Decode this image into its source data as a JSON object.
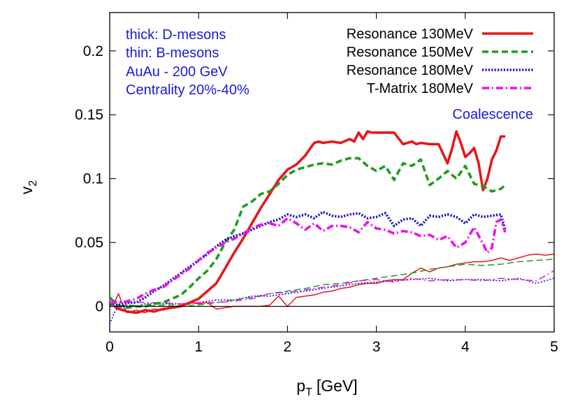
{
  "chart_data": {
    "type": "line",
    "xlabel": "p",
    "xlabel_sub": "T",
    "xlabel_unit": "[GeV]",
    "ylabel": "v",
    "ylabel_sub": "2",
    "xlim": [
      0,
      5
    ],
    "ylim": [
      -0.02,
      0.23
    ],
    "xticks": [
      0,
      1,
      2,
      3,
      4,
      5
    ],
    "yticks": [
      0,
      0.05,
      0.1,
      0.15,
      0.2
    ],
    "ytick_labels": [
      "0",
      "0.05",
      "0.1",
      "0.15",
      "0.2"
    ],
    "zero_line": true,
    "grid": false,
    "annotations": {
      "notes": [
        "thick: D-mesons",
        "thin: B-mesons",
        "AuAu - 200 GeV",
        "Centrality 20%-40%"
      ],
      "coalescence": "Coalescence"
    },
    "legend_position": "top-right",
    "series": [
      {
        "name": "Resonance 130MeV",
        "color": "#e8161b",
        "dash": "solid",
        "thick_x": [
          0.05,
          0.1,
          0.15,
          0.2,
          0.3,
          0.4,
          0.5,
          0.6,
          0.7,
          0.8,
          0.9,
          1.0,
          1.1,
          1.2,
          1.3,
          1.4,
          1.5,
          1.6,
          1.7,
          1.8,
          1.9,
          2.0,
          2.1,
          2.2,
          2.3,
          2.35,
          2.4,
          2.5,
          2.6,
          2.7,
          2.75,
          2.8,
          2.85,
          2.9,
          2.95,
          3.0,
          3.1,
          3.2,
          3.3,
          3.4,
          3.45,
          3.5,
          3.6,
          3.7,
          3.8,
          3.85,
          3.9,
          3.95,
          4.0,
          4.05,
          4.1,
          4.15,
          4.2,
          4.25,
          4.3,
          4.35,
          4.4,
          4.45
        ],
        "thick_y": [
          0.0,
          -0.002,
          -0.003,
          -0.004,
          -0.005,
          -0.003,
          -0.004,
          -0.002,
          -0.001,
          0.0,
          0.003,
          0.006,
          0.012,
          0.018,
          0.03,
          0.042,
          0.053,
          0.065,
          0.077,
          0.088,
          0.099,
          0.107,
          0.111,
          0.118,
          0.128,
          0.129,
          0.128,
          0.129,
          0.128,
          0.131,
          0.129,
          0.136,
          0.131,
          0.137,
          0.136,
          0.136,
          0.136,
          0.136,
          0.127,
          0.129,
          0.127,
          0.128,
          0.127,
          0.127,
          0.112,
          0.123,
          0.137,
          0.128,
          0.117,
          0.12,
          0.124,
          0.112,
          0.091,
          0.1,
          0.115,
          0.122,
          0.133,
          0.133
        ],
        "thin_x": [
          0.0,
          0.05,
          0.1,
          0.15,
          0.2,
          0.3,
          0.4,
          0.5,
          0.6,
          0.7,
          0.8,
          0.9,
          1.0,
          1.1,
          1.2,
          1.3,
          1.4,
          1.5,
          1.6,
          1.7,
          1.8,
          1.9,
          1.95,
          2.0,
          2.1,
          2.2,
          2.3,
          2.4,
          2.5,
          2.6,
          2.7,
          2.8,
          2.9,
          3.0,
          3.1,
          3.2,
          3.3,
          3.4,
          3.5,
          3.6,
          3.7,
          3.8,
          3.9,
          4.0,
          4.1,
          4.2,
          4.3,
          4.4,
          4.5,
          4.6,
          4.7,
          4.8,
          4.9,
          5.0
        ],
        "thin_y": [
          0.0,
          0.003,
          0.01,
          0.0,
          -0.005,
          -0.003,
          -0.005,
          -0.002,
          -0.003,
          -0.001,
          0.001,
          0.003,
          0.002,
          0.003,
          -0.002,
          -0.001,
          0.0,
          0.0,
          0.0,
          0.0,
          0.001,
          0.008,
          0.004,
          0.0,
          0.007,
          0.008,
          0.009,
          0.011,
          0.012,
          0.014,
          0.015,
          0.017,
          0.018,
          0.018,
          0.02,
          0.021,
          0.021,
          0.026,
          0.03,
          0.027,
          0.03,
          0.031,
          0.033,
          0.034,
          0.035,
          0.035,
          0.036,
          0.038,
          0.036,
          0.038,
          0.04,
          0.041,
          0.04,
          0.041
        ]
      },
      {
        "name": "Resonance 150MeV",
        "color": "#1f9c1f",
        "dash": "dashed",
        "thick_x": [
          0.0,
          0.1,
          0.2,
          0.3,
          0.4,
          0.5,
          0.6,
          0.7,
          0.8,
          0.9,
          1.0,
          1.1,
          1.2,
          1.3,
          1.4,
          1.5,
          1.6,
          1.7,
          1.8,
          1.9,
          2.0,
          2.1,
          2.2,
          2.3,
          2.4,
          2.5,
          2.6,
          2.7,
          2.8,
          2.9,
          3.0,
          3.1,
          3.2,
          3.3,
          3.4,
          3.5,
          3.6,
          3.7,
          3.8,
          3.9,
          4.0,
          4.1,
          4.2,
          4.3,
          4.4,
          4.45
        ],
        "thick_y": [
          0.007,
          0.0,
          -0.001,
          0.0,
          0.0,
          0.002,
          0.003,
          0.006,
          0.009,
          0.015,
          0.022,
          0.028,
          0.037,
          0.05,
          0.06,
          0.078,
          0.082,
          0.088,
          0.09,
          0.096,
          0.103,
          0.107,
          0.109,
          0.111,
          0.112,
          0.111,
          0.114,
          0.116,
          0.116,
          0.11,
          0.106,
          0.11,
          0.099,
          0.112,
          0.11,
          0.115,
          0.095,
          0.1,
          0.106,
          0.1,
          0.11,
          0.096,
          0.094,
          0.09,
          0.092,
          0.095
        ],
        "thin_x": [
          0.0,
          0.2,
          0.4,
          0.6,
          0.8,
          1.0,
          1.2,
          1.4,
          1.6,
          1.8,
          2.0,
          2.2,
          2.4,
          2.6,
          2.8,
          3.0,
          3.2,
          3.4,
          3.6,
          3.8,
          4.0,
          4.2,
          4.4,
          4.6,
          4.8,
          5.0
        ],
        "thin_y": [
          0.0,
          0.001,
          0.0,
          0.001,
          0.001,
          0.001,
          0.003,
          0.005,
          0.007,
          0.01,
          0.012,
          0.014,
          0.017,
          0.018,
          0.02,
          0.022,
          0.024,
          0.026,
          0.029,
          0.031,
          0.033,
          0.032,
          0.033,
          0.035,
          0.036,
          0.037
        ]
      },
      {
        "name": "Resonance 180MeV",
        "color": "#1515c8",
        "dash": "dotted",
        "thick_x": [
          0.0,
          0.1,
          0.2,
          0.3,
          0.4,
          0.5,
          0.6,
          0.7,
          0.8,
          0.9,
          1.0,
          1.1,
          1.2,
          1.3,
          1.4,
          1.5,
          1.6,
          1.7,
          1.8,
          1.9,
          2.0,
          2.1,
          2.2,
          2.3,
          2.4,
          2.5,
          2.6,
          2.7,
          2.8,
          2.9,
          3.0,
          3.1,
          3.2,
          3.3,
          3.4,
          3.5,
          3.6,
          3.7,
          3.8,
          3.9,
          4.0,
          4.1,
          4.2,
          4.3,
          4.4,
          4.45
        ],
        "thick_y": [
          0.002,
          0.001,
          0.003,
          0.003,
          0.007,
          0.012,
          0.016,
          0.021,
          0.026,
          0.031,
          0.036,
          0.041,
          0.047,
          0.052,
          0.055,
          0.057,
          0.06,
          0.063,
          0.066,
          0.068,
          0.072,
          0.07,
          0.072,
          0.069,
          0.074,
          0.071,
          0.07,
          0.072,
          0.073,
          0.069,
          0.07,
          0.073,
          0.063,
          0.068,
          0.069,
          0.063,
          0.071,
          0.07,
          0.072,
          0.07,
          0.065,
          0.072,
          0.07,
          0.071,
          0.072,
          0.06
        ],
        "thin_x": [
          0.0,
          0.05,
          0.1,
          0.2,
          0.3,
          0.4,
          0.6,
          0.8,
          1.0,
          1.2,
          1.4,
          1.6,
          1.8,
          2.0,
          2.2,
          2.4,
          2.6,
          2.8,
          3.0,
          3.2,
          3.4,
          3.6,
          3.8,
          4.0,
          4.2,
          4.4,
          4.6,
          4.8,
          5.0
        ],
        "thin_y": [
          -0.014,
          -0.005,
          0.0,
          0.001,
          0.0,
          0.002,
          0.002,
          0.002,
          0.003,
          0.005,
          0.005,
          0.008,
          0.008,
          0.01,
          0.012,
          0.014,
          0.016,
          0.018,
          0.019,
          0.02,
          0.021,
          0.022,
          0.02,
          0.021,
          0.021,
          0.02,
          0.022,
          0.018,
          0.022
        ]
      },
      {
        "name": "T-Matrix 180MeV",
        "color": "#ee11ee",
        "dash": "dashdot",
        "thick_x": [
          0.0,
          0.1,
          0.2,
          0.3,
          0.4,
          0.5,
          0.6,
          0.7,
          0.8,
          0.9,
          1.0,
          1.1,
          1.2,
          1.3,
          1.4,
          1.5,
          1.6,
          1.7,
          1.8,
          1.9,
          2.0,
          2.1,
          2.2,
          2.3,
          2.4,
          2.5,
          2.6,
          2.7,
          2.8,
          2.9,
          3.0,
          3.1,
          3.2,
          3.3,
          3.4,
          3.5,
          3.6,
          3.7,
          3.8,
          3.9,
          4.0,
          4.1,
          4.2,
          4.25,
          4.3,
          4.35,
          4.4,
          4.45
        ],
        "thick_y": [
          0.003,
          0.003,
          0.004,
          0.006,
          0.01,
          0.013,
          0.015,
          0.02,
          0.025,
          0.03,
          0.036,
          0.042,
          0.046,
          0.05,
          0.053,
          0.057,
          0.061,
          0.064,
          0.065,
          0.063,
          0.069,
          0.065,
          0.06,
          0.065,
          0.059,
          0.063,
          0.063,
          0.062,
          0.058,
          0.066,
          0.061,
          0.06,
          0.057,
          0.059,
          0.058,
          0.055,
          0.056,
          0.052,
          0.055,
          0.046,
          0.05,
          0.062,
          0.049,
          0.042,
          0.046,
          0.066,
          0.068,
          0.058
        ],
        "thin_x": [
          0.0,
          0.2,
          0.4,
          0.6,
          0.8,
          1.0,
          1.2,
          1.4,
          1.6,
          1.8,
          2.0,
          2.2,
          2.4,
          2.6,
          2.8,
          3.0,
          3.2,
          3.4,
          3.6,
          3.8,
          4.0,
          4.2,
          4.4,
          4.6,
          4.8,
          5.0
        ],
        "thin_y": [
          0.005,
          0.003,
          0.003,
          0.003,
          0.002,
          0.003,
          0.003,
          0.004,
          0.006,
          0.01,
          0.011,
          0.013,
          0.015,
          0.017,
          0.02,
          0.021,
          0.019,
          0.022,
          0.02,
          0.021,
          0.021,
          0.02,
          0.022,
          0.021,
          0.02,
          0.028
        ]
      }
    ]
  }
}
